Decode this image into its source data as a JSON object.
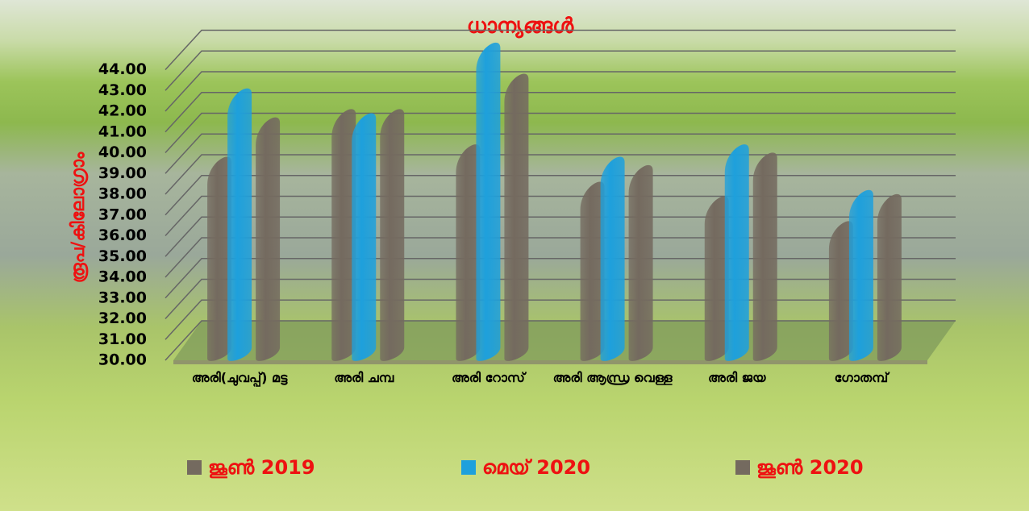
{
  "chart_data": {
    "type": "bar3d",
    "title": "ധാന്യങ്ങൾ",
    "y_label": "രൂപ/കിലോഗ്രാം",
    "categories": [
      "അരി(ചുവപ്പ്) മട്ട",
      "അരി ചമ്പ",
      "അരി റോസ്",
      "അരി ആന്ധ്ര വെള്ള",
      "അരി ജയ",
      "ഗോതമ്പ്"
    ],
    "series": [
      {
        "name": "ജൂൺ 2019",
        "color": "#746a5f",
        "values": [
          39.0,
          41.3,
          39.6,
          37.8,
          37.1,
          35.9
        ]
      },
      {
        "name": "മെയ് 2020",
        "color": "#1ea0dc",
        "values": [
          42.3,
          41.1,
          44.5,
          39.0,
          39.6,
          37.4
        ]
      },
      {
        "name": "ജൂൺ 2020",
        "color": "#746a5f",
        "values": [
          40.9,
          41.3,
          43.0,
          38.6,
          39.2,
          37.2
        ]
      }
    ],
    "ylim": [
      30,
      46
    ],
    "yticks": [
      {
        "value": 30,
        "label": "30.00"
      },
      {
        "value": 31,
        "label": "31.00"
      },
      {
        "value": 32,
        "label": "32.00"
      },
      {
        "value": 33,
        "label": "33.00"
      },
      {
        "value": 34,
        "label": "34.00"
      },
      {
        "value": 35,
        "label": "35.00"
      },
      {
        "value": 36,
        "label": "36.00"
      },
      {
        "value": 37,
        "label": "37.00"
      },
      {
        "value": 38,
        "label": "38.00"
      },
      {
        "value": 39,
        "label": "39.00"
      },
      {
        "value": 40,
        "label": "40.00"
      },
      {
        "value": 41,
        "label": "41.00"
      },
      {
        "value": 42,
        "label": "42.00"
      },
      {
        "value": 43,
        "label": "43.00"
      },
      {
        "value": 44,
        "label": "44.00"
      }
    ],
    "grid": true
  }
}
